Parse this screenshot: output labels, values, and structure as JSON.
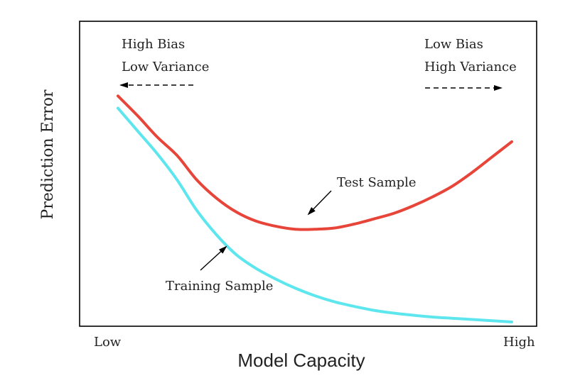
{
  "chart_data": {
    "type": "line",
    "xlabel": "Model Capacity",
    "ylabel": "Prediction Error",
    "x_tick_labels": [
      "Low",
      "High"
    ],
    "grid": false,
    "x": [
      0,
      0.05,
      0.1,
      0.15,
      0.2,
      0.25,
      0.3,
      0.35,
      0.4,
      0.45,
      0.5,
      0.55,
      0.6,
      0.65,
      0.7,
      0.75,
      0.8,
      0.85,
      0.9,
      0.95,
      1.0
    ],
    "series": [
      {
        "name": "Test Sample",
        "color": "#e8453a",
        "values": [
          0.755,
          0.69,
          0.62,
          0.56,
          0.48,
          0.42,
          0.375,
          0.345,
          0.328,
          0.318,
          0.318,
          0.322,
          0.335,
          0.352,
          0.37,
          0.395,
          0.425,
          0.46,
          0.505,
          0.555,
          0.605
        ]
      },
      {
        "name": "Training Sample",
        "color": "#5ee6ee",
        "values": [
          0.715,
          0.64,
          0.565,
          0.48,
          0.38,
          0.3,
          0.235,
          0.19,
          0.155,
          0.125,
          0.1,
          0.08,
          0.065,
          0.052,
          0.043,
          0.036,
          0.03,
          0.026,
          0.022,
          0.018,
          0.014
        ]
      }
    ],
    "annotations": {
      "left_regime": [
        "High Bias",
        "Low Variance"
      ],
      "right_regime": [
        "Low Bias",
        "High Variance"
      ],
      "test_label": "Test Sample",
      "train_label": "Training Sample"
    }
  }
}
